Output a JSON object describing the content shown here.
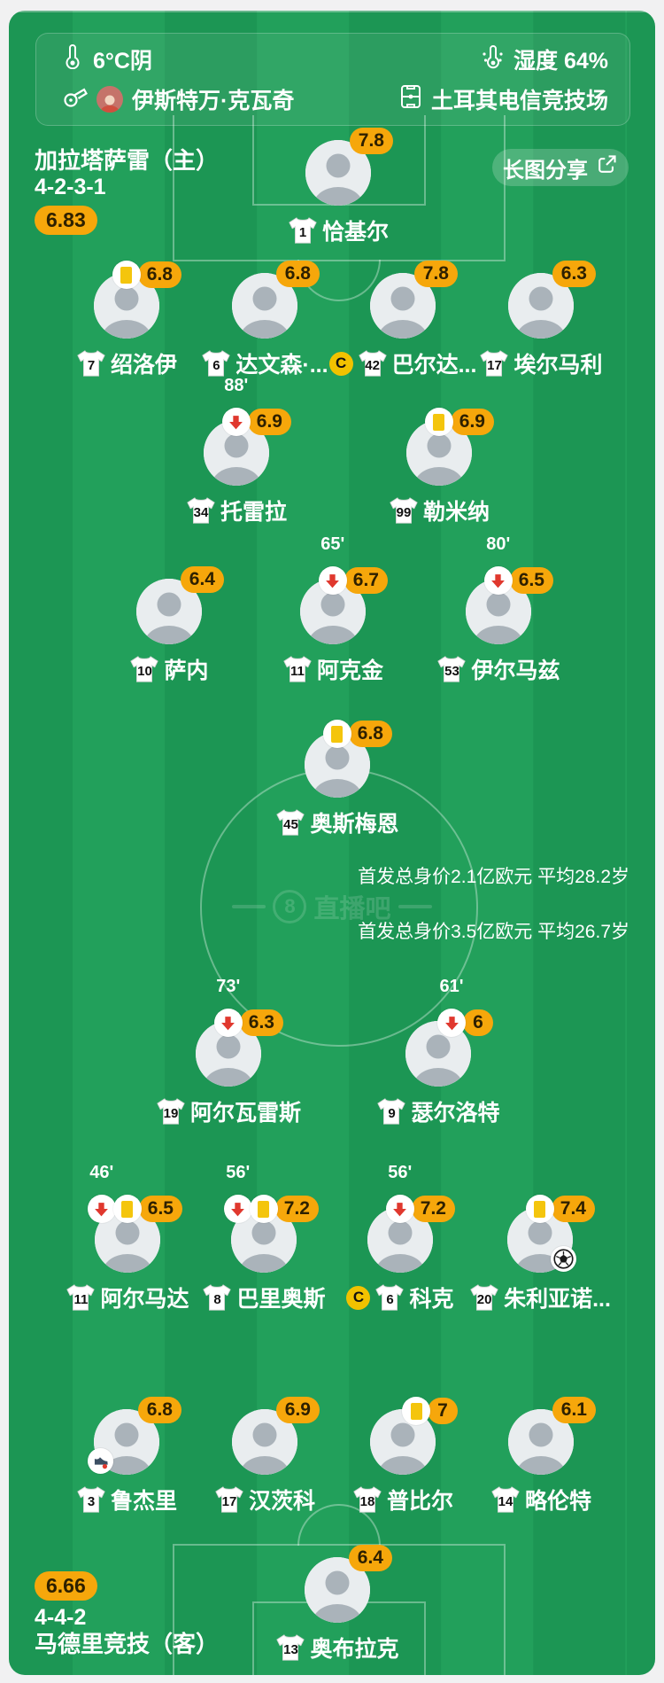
{
  "meta": {
    "weather": "6°C阴",
    "humidity": "湿度 64%",
    "referee": "伊斯特万·克瓦奇",
    "venue": "土耳其电信竞技场"
  },
  "share": {
    "label": "长图分享"
  },
  "watermark": {
    "logo": "8",
    "text": "直播吧"
  },
  "colors": {
    "pitch_green": "#1e9e58",
    "rating_orange": "#f6a70b",
    "yellow_card": "#f4c50d",
    "sub_red": "#e0382e"
  },
  "home": {
    "name": "加拉塔萨雷（主）",
    "side_label": "主",
    "formation": "4-2-3-1",
    "avg_rating": "6.83",
    "value_note": "首发总身价2.1亿欧元 平均28.2岁",
    "rows": [
      [
        {
          "number": "1",
          "name": "恰基尔",
          "rating": "7.8"
        }
      ],
      [
        {
          "number": "7",
          "name": "绍洛伊",
          "rating": "6.8",
          "yellow": true
        },
        {
          "number": "6",
          "name": "达文森·...",
          "rating": "6.8"
        },
        {
          "number": "42",
          "name": "巴尔达...",
          "rating": "7.8",
          "captain": true
        },
        {
          "number": "17",
          "name": "埃尔马利",
          "rating": "6.3"
        }
      ],
      [
        {
          "number": "34",
          "name": "托雷拉",
          "rating": "6.9",
          "sub_off": "88'"
        },
        {
          "number": "99",
          "name": "勒米纳",
          "rating": "6.9",
          "yellow": true
        }
      ],
      [
        {
          "number": "10",
          "name": "萨内",
          "rating": "6.4"
        },
        {
          "number": "11",
          "name": "阿克金",
          "rating": "6.7",
          "sub_off": "65'"
        },
        {
          "number": "53",
          "name": "伊尔马兹",
          "rating": "6.5",
          "sub_off": "80'"
        }
      ],
      [
        {
          "number": "45",
          "name": "奥斯梅恩",
          "rating": "6.8",
          "yellow": true
        }
      ]
    ]
  },
  "away": {
    "name": "马德里竞技（客）",
    "side_label": "客",
    "formation": "4-4-2",
    "avg_rating": "6.66",
    "value_note": "首发总身价3.5亿欧元 平均26.7岁",
    "rows": [
      [
        {
          "number": "19",
          "name": "阿尔瓦雷斯",
          "rating": "6.3",
          "sub_off": "73'"
        },
        {
          "number": "9",
          "name": "瑟尔洛特",
          "rating": "6",
          "sub_off": "61'"
        }
      ],
      [
        {
          "number": "11",
          "name": "阿尔马达",
          "rating": "6.5",
          "sub_off": "46'",
          "yellow": true
        },
        {
          "number": "8",
          "name": "巴里奥斯",
          "rating": "7.2",
          "sub_off": "56'",
          "yellow": true
        },
        {
          "number": "6",
          "name": "科克",
          "rating": "7.2",
          "sub_off": "56'",
          "captain": true
        },
        {
          "number": "20",
          "name": "朱利亚诺...",
          "rating": "7.4",
          "yellow": true,
          "goal": true
        }
      ],
      [
        {
          "number": "3",
          "name": "鲁杰里",
          "rating": "6.8",
          "assist": true
        },
        {
          "number": "17",
          "name": "汉茨科",
          "rating": "6.9"
        },
        {
          "number": "18",
          "name": "普比尔",
          "rating": "7",
          "yellow": true
        },
        {
          "number": "14",
          "name": "略伦特",
          "rating": "6.1"
        }
      ],
      [
        {
          "number": "13",
          "name": "奥布拉克",
          "rating": "6.4"
        }
      ]
    ]
  }
}
